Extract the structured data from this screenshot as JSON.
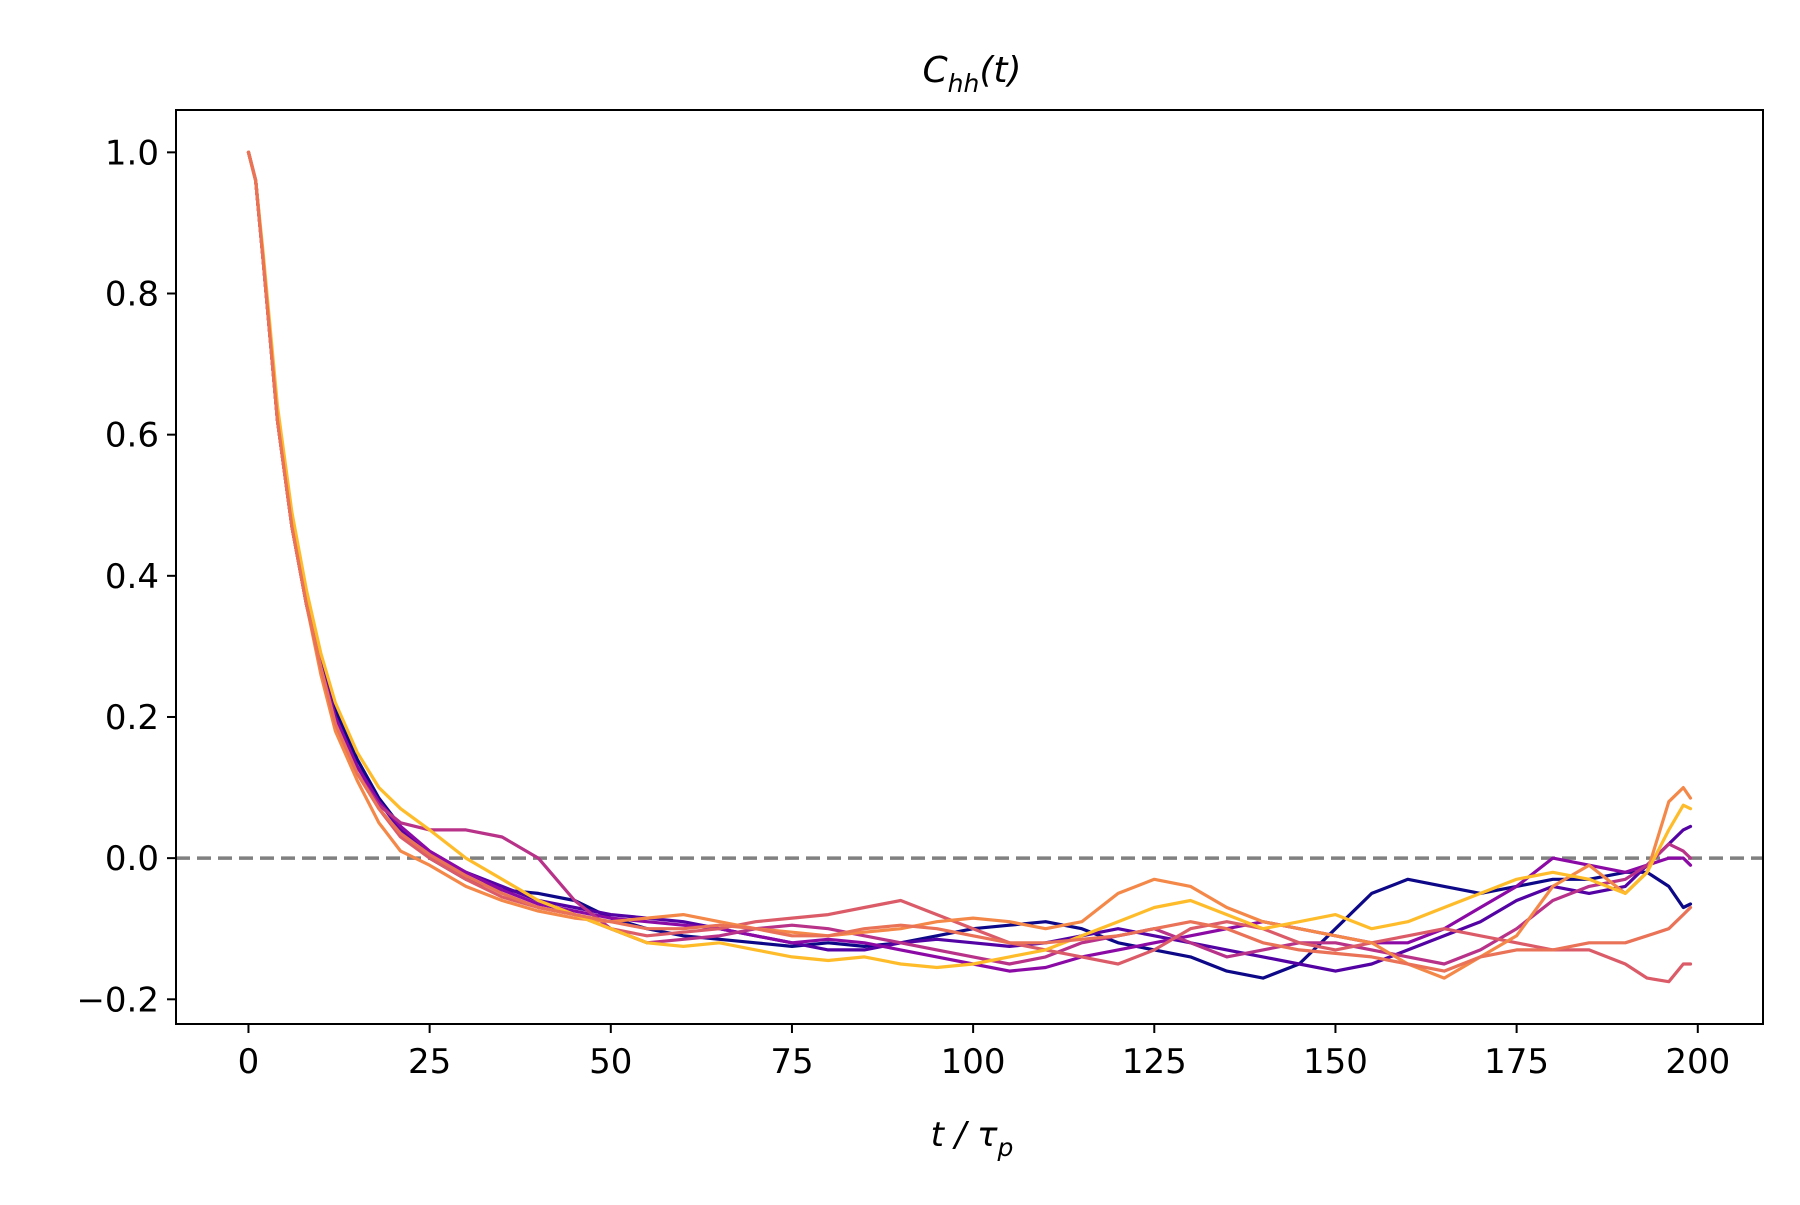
{
  "chart_data": {
    "type": "line",
    "title": {
      "main": "C",
      "sub": "hh",
      "tail": "(t)"
    },
    "xlabel": {
      "main": "t / τ",
      "sub": "p"
    },
    "ylabel": "",
    "xlim": [
      -10,
      209
    ],
    "ylim": [
      -0.235,
      1.06
    ],
    "xticks": [
      0,
      25,
      50,
      75,
      100,
      125,
      150,
      175,
      200
    ],
    "xtick_labels": [
      "0",
      "25",
      "50",
      "75",
      "100",
      "125",
      "150",
      "175",
      "200"
    ],
    "yticks": [
      -0.2,
      0.0,
      0.2,
      0.4,
      0.6,
      0.8,
      1.0
    ],
    "ytick_labels": [
      "−0.2",
      "0.0",
      "0.2",
      "0.4",
      "0.6",
      "0.8",
      "1.0"
    ],
    "grid": false,
    "legend": "none",
    "reference_line": {
      "y": 0.0,
      "style": "dashed",
      "color": "#808080"
    },
    "x": [
      0,
      1,
      2,
      4,
      6,
      8,
      10,
      12,
      15,
      18,
      21,
      25,
      30,
      35,
      40,
      45,
      50,
      55,
      60,
      65,
      70,
      75,
      80,
      85,
      90,
      95,
      100,
      105,
      110,
      115,
      120,
      125,
      130,
      135,
      140,
      145,
      150,
      155,
      160,
      165,
      170,
      175,
      180,
      185,
      190,
      193,
      196,
      198,
      199
    ],
    "series": [
      {
        "color": "#0d0887",
        "values": [
          1.0,
          0.96,
          0.85,
          0.62,
          0.47,
          0.36,
          0.28,
          0.21,
          0.14,
          0.085,
          0.045,
          0.0,
          -0.03,
          -0.045,
          -0.05,
          -0.06,
          -0.085,
          -0.1,
          -0.11,
          -0.115,
          -0.12,
          -0.125,
          -0.12,
          -0.125,
          -0.12,
          -0.11,
          -0.1,
          -0.095,
          -0.09,
          -0.1,
          -0.12,
          -0.13,
          -0.14,
          -0.16,
          -0.17,
          -0.15,
          -0.1,
          -0.05,
          -0.03,
          -0.04,
          -0.05,
          -0.04,
          -0.03,
          -0.03,
          -0.02,
          -0.02,
          -0.04,
          -0.07,
          -0.065
        ]
      },
      {
        "color": "#5302a3",
        "values": [
          1.0,
          0.96,
          0.85,
          0.62,
          0.47,
          0.36,
          0.28,
          0.2,
          0.13,
          0.08,
          0.04,
          0.005,
          -0.02,
          -0.04,
          -0.06,
          -0.07,
          -0.08,
          -0.085,
          -0.09,
          -0.1,
          -0.11,
          -0.12,
          -0.13,
          -0.13,
          -0.12,
          -0.115,
          -0.12,
          -0.125,
          -0.12,
          -0.11,
          -0.1,
          -0.11,
          -0.12,
          -0.13,
          -0.14,
          -0.15,
          -0.16,
          -0.15,
          -0.13,
          -0.11,
          -0.09,
          -0.06,
          -0.04,
          -0.05,
          -0.04,
          -0.01,
          0.02,
          0.04,
          0.045
        ]
      },
      {
        "color": "#8b0aa5",
        "values": [
          1.0,
          0.96,
          0.85,
          0.62,
          0.47,
          0.36,
          0.27,
          0.2,
          0.13,
          0.08,
          0.045,
          0.01,
          -0.02,
          -0.045,
          -0.065,
          -0.075,
          -0.085,
          -0.09,
          -0.095,
          -0.1,
          -0.11,
          -0.12,
          -0.115,
          -0.12,
          -0.13,
          -0.14,
          -0.15,
          -0.16,
          -0.155,
          -0.14,
          -0.13,
          -0.12,
          -0.11,
          -0.1,
          -0.09,
          -0.1,
          -0.11,
          -0.12,
          -0.12,
          -0.1,
          -0.07,
          -0.04,
          0.0,
          -0.01,
          -0.02,
          -0.01,
          0.0,
          0.0,
          -0.01
        ]
      },
      {
        "color": "#b83289",
        "values": [
          1.0,
          0.96,
          0.85,
          0.62,
          0.47,
          0.36,
          0.27,
          0.19,
          0.12,
          0.075,
          0.05,
          0.04,
          0.04,
          0.03,
          0.0,
          -0.06,
          -0.1,
          -0.12,
          -0.115,
          -0.11,
          -0.1,
          -0.095,
          -0.1,
          -0.11,
          -0.12,
          -0.13,
          -0.14,
          -0.15,
          -0.14,
          -0.12,
          -0.11,
          -0.1,
          -0.12,
          -0.14,
          -0.13,
          -0.12,
          -0.12,
          -0.13,
          -0.14,
          -0.15,
          -0.13,
          -0.1,
          -0.06,
          -0.04,
          -0.03,
          -0.01,
          0.02,
          0.01,
          0.0
        ]
      },
      {
        "color": "#db5c68",
        "values": [
          1.0,
          0.96,
          0.85,
          0.62,
          0.47,
          0.36,
          0.27,
          0.19,
          0.12,
          0.07,
          0.03,
          0.0,
          -0.03,
          -0.055,
          -0.07,
          -0.08,
          -0.1,
          -0.11,
          -0.105,
          -0.1,
          -0.09,
          -0.085,
          -0.08,
          -0.07,
          -0.06,
          -0.08,
          -0.1,
          -0.12,
          -0.13,
          -0.14,
          -0.15,
          -0.13,
          -0.1,
          -0.09,
          -0.1,
          -0.12,
          -0.13,
          -0.12,
          -0.11,
          -0.1,
          -0.11,
          -0.12,
          -0.13,
          -0.13,
          -0.15,
          -0.17,
          -0.175,
          -0.15,
          -0.15
        ]
      },
      {
        "color": "#f48849",
        "values": [
          1.0,
          0.96,
          0.85,
          0.62,
          0.47,
          0.36,
          0.26,
          0.18,
          0.11,
          0.05,
          0.01,
          -0.01,
          -0.04,
          -0.06,
          -0.075,
          -0.085,
          -0.09,
          -0.085,
          -0.08,
          -0.09,
          -0.1,
          -0.105,
          -0.11,
          -0.105,
          -0.1,
          -0.09,
          -0.085,
          -0.09,
          -0.1,
          -0.09,
          -0.05,
          -0.03,
          -0.04,
          -0.07,
          -0.09,
          -0.1,
          -0.11,
          -0.12,
          -0.15,
          -0.17,
          -0.14,
          -0.11,
          -0.04,
          -0.01,
          -0.05,
          -0.02,
          0.08,
          0.1,
          0.085
        ]
      },
      {
        "color": "#febc2a",
        "values": [
          1.0,
          0.96,
          0.86,
          0.64,
          0.49,
          0.38,
          0.29,
          0.22,
          0.15,
          0.1,
          0.07,
          0.04,
          0.0,
          -0.03,
          -0.06,
          -0.08,
          -0.1,
          -0.12,
          -0.125,
          -0.12,
          -0.13,
          -0.14,
          -0.145,
          -0.14,
          -0.15,
          -0.155,
          -0.15,
          -0.14,
          -0.13,
          -0.11,
          -0.09,
          -0.07,
          -0.06,
          -0.08,
          -0.1,
          -0.09,
          -0.08,
          -0.1,
          -0.09,
          -0.07,
          -0.05,
          -0.03,
          -0.02,
          -0.03,
          -0.05,
          -0.02,
          0.04,
          0.075,
          0.07
        ]
      },
      {
        "color": "#e97257",
        "values": [
          1.0,
          0.96,
          0.85,
          0.62,
          0.47,
          0.36,
          0.27,
          0.19,
          0.12,
          0.07,
          0.035,
          0.005,
          -0.025,
          -0.05,
          -0.07,
          -0.08,
          -0.09,
          -0.1,
          -0.1,
          -0.095,
          -0.1,
          -0.11,
          -0.11,
          -0.1,
          -0.095,
          -0.1,
          -0.11,
          -0.12,
          -0.12,
          -0.115,
          -0.11,
          -0.1,
          -0.09,
          -0.1,
          -0.12,
          -0.13,
          -0.135,
          -0.14,
          -0.15,
          -0.16,
          -0.14,
          -0.13,
          -0.13,
          -0.12,
          -0.12,
          -0.11,
          -0.1,
          -0.08,
          -0.07
        ]
      }
    ]
  }
}
